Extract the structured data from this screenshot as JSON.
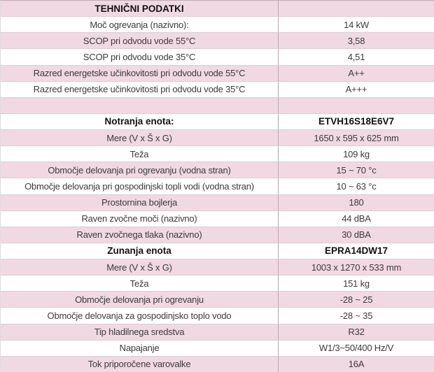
{
  "table": {
    "title": "TEHNIČNI PODATKI",
    "colors": {
      "row_pink": "#f0d9e2",
      "row_white": "#ffffff",
      "row_border": "#d9ced3",
      "divider": "#b5a6ae",
      "outer_border": "#c0aab5",
      "text": "#3b3b3b",
      "text_bold": "#111111"
    },
    "rows": [
      {
        "label": "TEHNIČNI PODATKI",
        "value": "",
        "bold": true
      },
      {
        "label": "Moč ogrevanja (nazivno):",
        "value": "14 kW",
        "bold": false
      },
      {
        "label": "SCOP pri odvodu vode 55°C",
        "value": "3,58",
        "bold": false
      },
      {
        "label": "SCOP pri odvodu vode 35°C",
        "value": "4,51",
        "bold": false
      },
      {
        "label": "Razred energetske učinkovitosti pri odvodu vode 55°C",
        "value": "A++",
        "bold": false
      },
      {
        "label": "Razred energetske učinkovitosti pri odvodu vode 35°C",
        "value": "A+++",
        "bold": false
      },
      {
        "label": "",
        "value": "",
        "bold": false
      },
      {
        "label": "Notranja enota:",
        "value": "ETVH16S18E6V7",
        "bold": true
      },
      {
        "label": "Mere (V x Š x G)",
        "value": "1650 x 595 x 625 mm",
        "bold": false
      },
      {
        "label": "Teža",
        "value": "109 kg",
        "bold": false
      },
      {
        "label": "Območje delovanja pri ogrevanju (vodna stran)",
        "value": "15 ~ 70 °c",
        "bold": false
      },
      {
        "label": "Območje delovanja pri gospodinjski topli vodi (vodna stran)",
        "value": "10 ~ 63 °c",
        "bold": false
      },
      {
        "label": "Prostornina bojlerja",
        "value": "180",
        "bold": false
      },
      {
        "label": "Raven zvočne moči (nazivno)",
        "value": "44 dBA",
        "bold": false
      },
      {
        "label": "Raven zvočnega tlaka (nazivno)",
        "value": "30 dBA",
        "bold": false
      },
      {
        "label": "Zunanja enota",
        "value": "EPRA14DW17",
        "bold": true
      },
      {
        "label": "Mere (V x Š x G)",
        "value": "1003 x 1270 x 533 mm",
        "bold": false
      },
      {
        "label": "Teža",
        "value": "151 kg",
        "bold": false
      },
      {
        "label": "Območje delovanja pri ogrevanju",
        "value": "-28 ~ 25",
        "bold": false
      },
      {
        "label": "Območje delovanja za gospodinjsko toplo vodo",
        "value": "-28 ~ 35",
        "bold": false
      },
      {
        "label": "Tip hladilnega sredstva",
        "value": "R32",
        "bold": false
      },
      {
        "label": "Napajanje",
        "value": "W1/3~50/400 Hz/V",
        "bold": false
      },
      {
        "label": "Tok priporočene varovalke",
        "value": "16A",
        "bold": false
      }
    ]
  }
}
